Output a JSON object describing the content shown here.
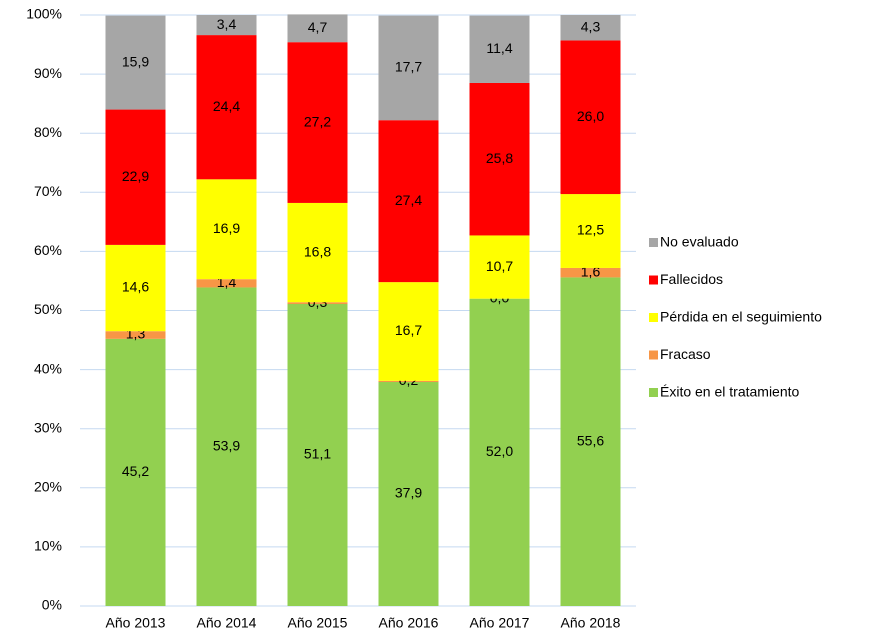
{
  "chart_data": {
    "type": "stacked_bar",
    "categories": [
      "Año 2013",
      "Año 2014",
      "Año 2015",
      "Año 2016",
      "Año 2017",
      "Año 2018"
    ],
    "series": [
      {
        "name": "Éxito en el tratamiento",
        "color": "#92d050",
        "values": [
          45.2,
          53.9,
          51.1,
          37.9,
          52.0,
          55.6
        ],
        "value_labels": [
          "45,2",
          "53,9",
          "51,1",
          "37,9",
          "52,0",
          "55,6"
        ]
      },
      {
        "name": "Fracaso",
        "color": "#f79646",
        "values": [
          1.3,
          1.4,
          0.3,
          0.2,
          0.0,
          1.6
        ],
        "value_labels": [
          "1,3",
          "1,4",
          "0,3",
          "0,2",
          "0,0",
          "1,6"
        ]
      },
      {
        "name": "Pérdida en el seguimiento",
        "color": "#ffff00",
        "values": [
          14.6,
          16.9,
          16.8,
          16.7,
          10.7,
          12.5
        ],
        "value_labels": [
          "14,6",
          "16,9",
          "16,8",
          "16,7",
          "10,7",
          "12,5"
        ]
      },
      {
        "name": "Fallecidos",
        "color": "#ff0000",
        "values": [
          22.9,
          24.4,
          27.2,
          27.4,
          25.8,
          26.0
        ],
        "value_labels": [
          "22,9",
          "24,4",
          "27,2",
          "27,4",
          "25,8",
          "26,0"
        ]
      },
      {
        "name": "No evaluado",
        "color": "#a6a6a6",
        "values": [
          15.9,
          3.4,
          4.7,
          17.7,
          11.4,
          4.3
        ],
        "value_labels": [
          "15,9",
          "3,4",
          "4,7",
          "17,7",
          "11,4",
          "4,3"
        ]
      }
    ],
    "ylim": [
      0,
      100
    ],
    "yticks": [
      {
        "value": 0,
        "label": "0%"
      },
      {
        "value": 10,
        "label": "10%"
      },
      {
        "value": 20,
        "label": "20%"
      },
      {
        "value": 30,
        "label": "30%"
      },
      {
        "value": 40,
        "label": "40%"
      },
      {
        "value": 50,
        "label": "50%"
      },
      {
        "value": 60,
        "label": "60%"
      },
      {
        "value": 70,
        "label": "70%"
      },
      {
        "value": 80,
        "label": "80%"
      },
      {
        "value": 90,
        "label": "90%"
      },
      {
        "value": 100,
        "label": "100%"
      }
    ],
    "grid": true,
    "legend": "right"
  }
}
